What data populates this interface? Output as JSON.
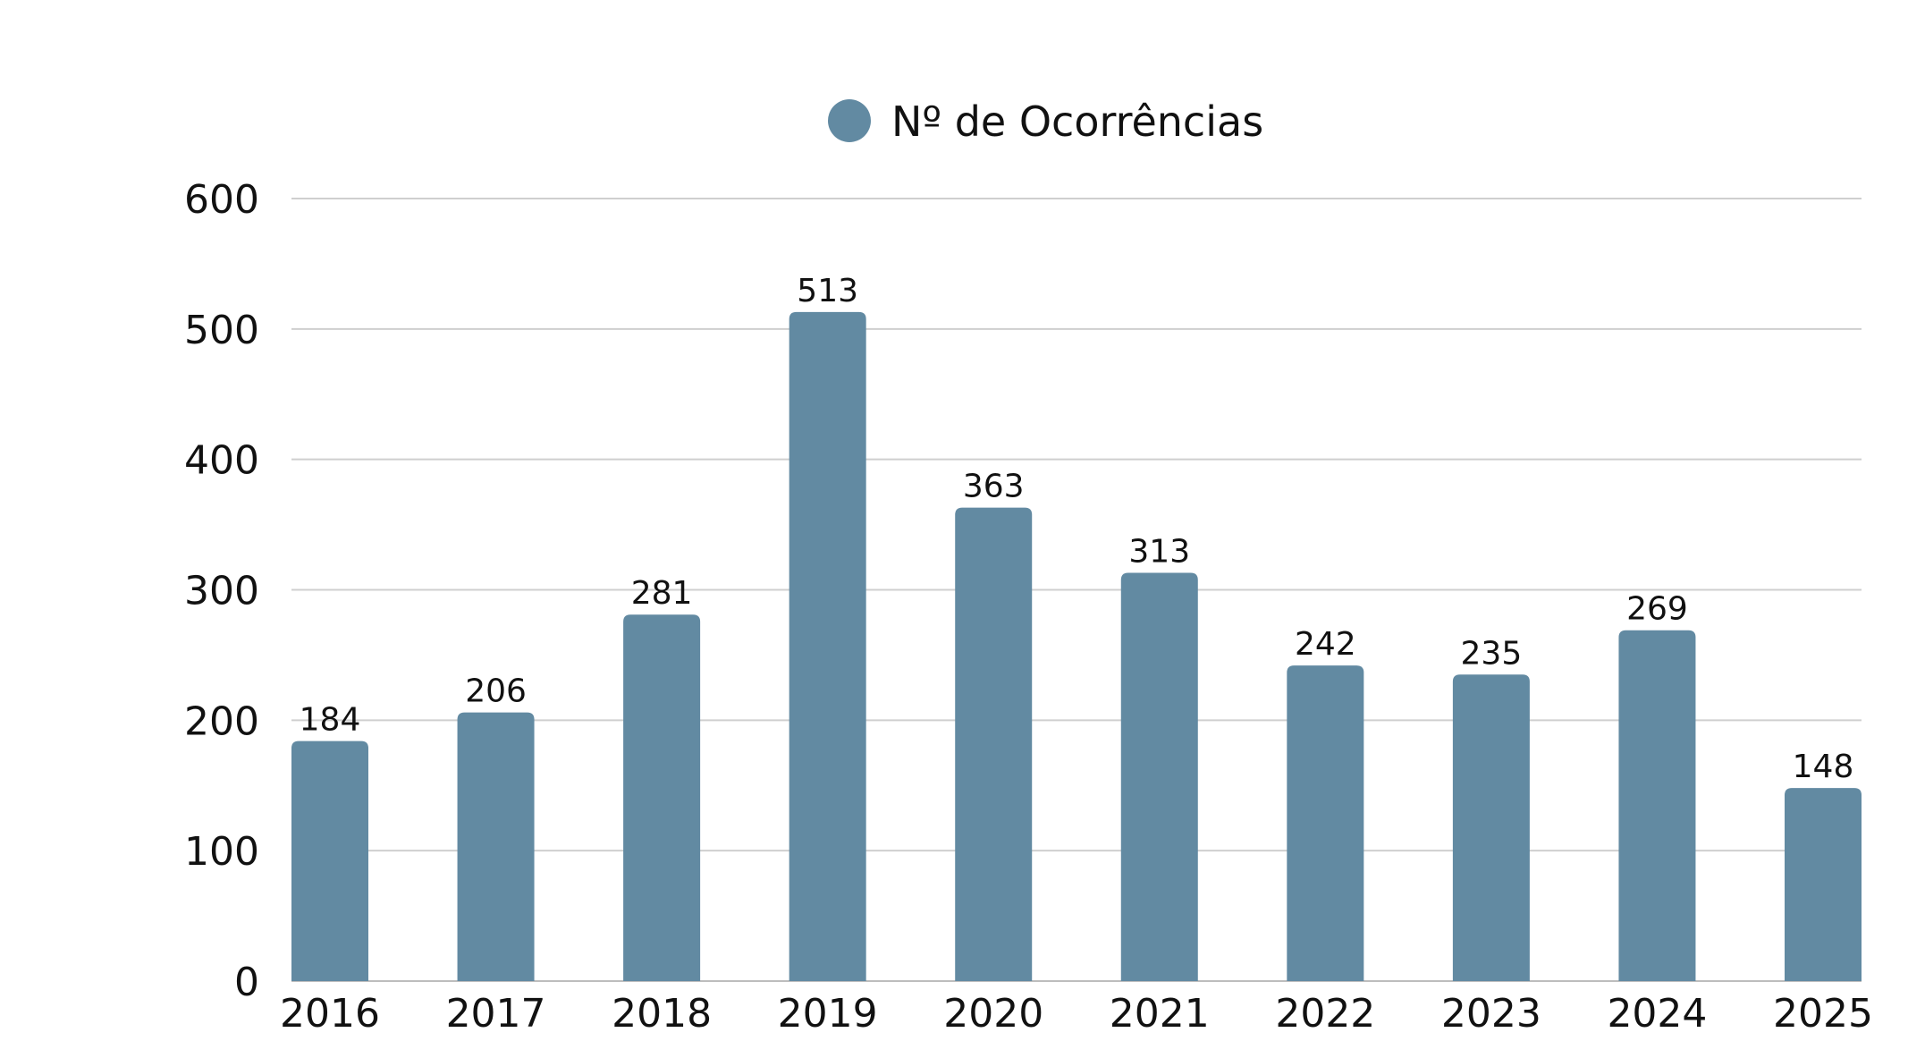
{
  "colors": {
    "bar": "#628aa2",
    "legend_marker": "#628aa2"
  },
  "chart_data": {
    "type": "bar",
    "title": "",
    "xlabel": "",
    "ylabel": "",
    "categories": [
      "2016",
      "2017",
      "2018",
      "2019",
      "2020",
      "2021",
      "2022",
      "2023",
      "2024",
      "2025"
    ],
    "series": [
      {
        "name": "Nº de Ocorrências",
        "values": [
          184,
          206,
          281,
          513,
          363,
          313,
          242,
          235,
          269,
          148
        ],
        "labels": [
          "184",
          "206",
          "281",
          "513",
          "363",
          "313",
          "242",
          "235",
          "269",
          "148"
        ]
      }
    ],
    "ylim": [
      0,
      600
    ],
    "yticks": [
      "0",
      "100",
      "200",
      "300",
      "400",
      "500",
      "600"
    ],
    "yticks_values": [
      0,
      100,
      200,
      300,
      400,
      500,
      600
    ],
    "grid": true,
    "legend_position": "top-center"
  }
}
